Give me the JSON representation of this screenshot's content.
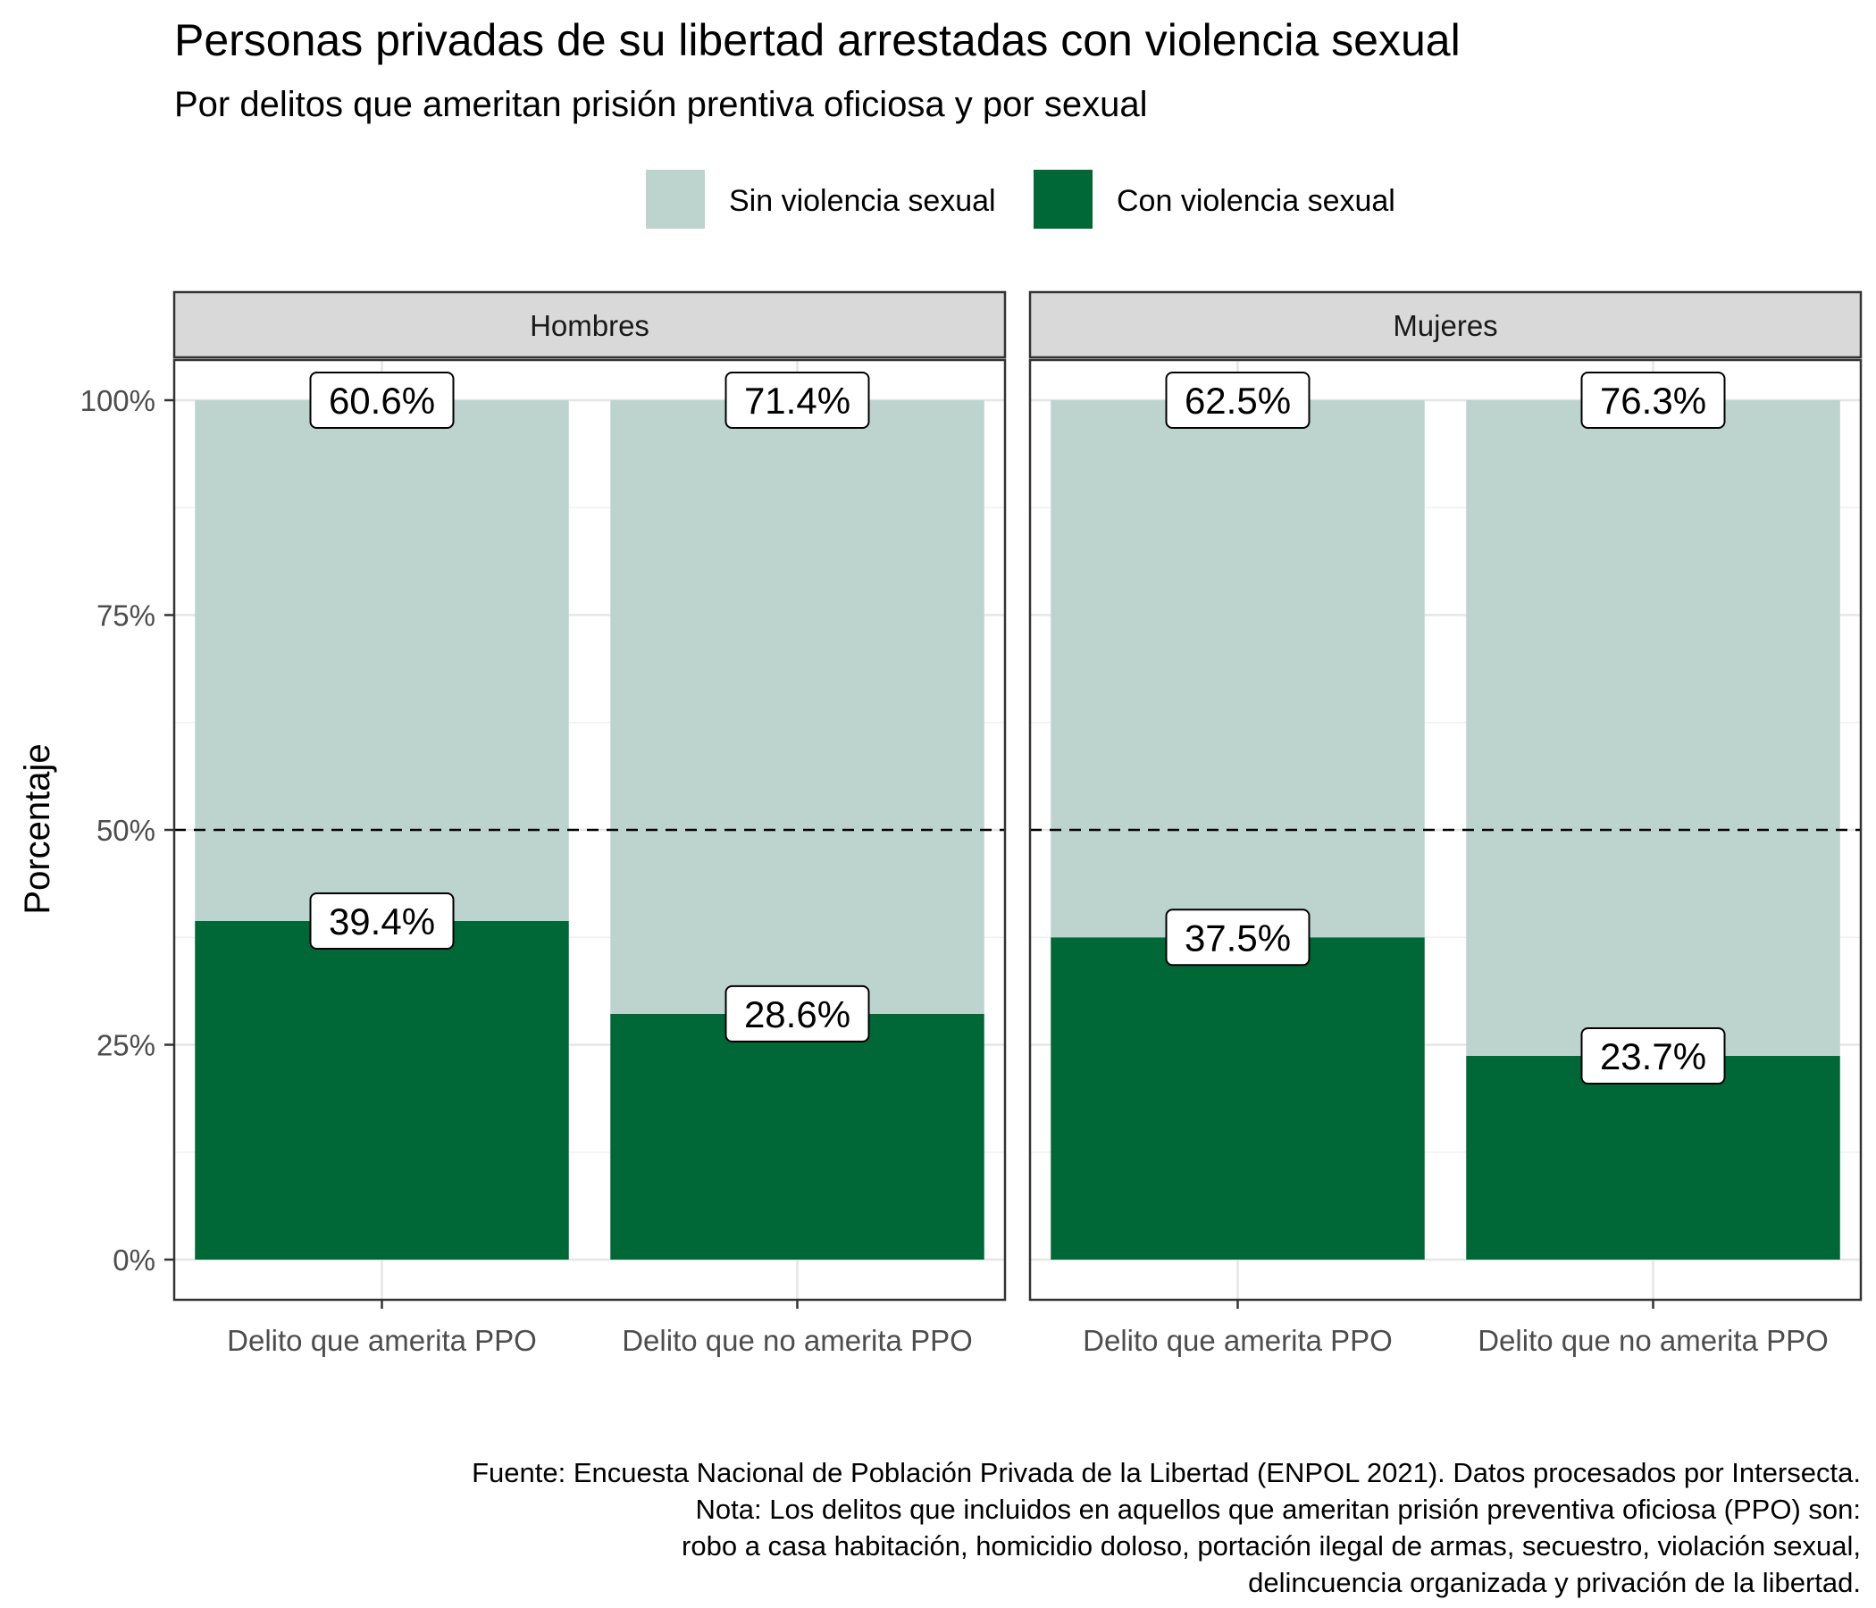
{
  "chart_data": {
    "type": "bar",
    "stacked": true,
    "title": "Personas privadas de su libertad arrestadas con violencia sexual",
    "subtitle": "Por delitos que ameritan prisión prentiva oficiosa y por sexual",
    "ylabel": "Porcentaje",
    "xlabel": "",
    "ylim": [
      0,
      100
    ],
    "yticks": [
      "0%",
      "25%",
      "50%",
      "75%",
      "100%"
    ],
    "ytick_values": [
      0,
      25,
      50,
      75,
      100
    ],
    "reference_line": {
      "y": 50,
      "style": "dashed"
    },
    "grid": true,
    "legend_position": "top",
    "categories": [
      "Delito que amerita PPO",
      "Delito que no amerita PPO"
    ],
    "series": [
      {
        "name": "Sin violencia sexual",
        "color": "#bcd4cd"
      },
      {
        "name": "Con violencia sexual",
        "color": "#006837"
      }
    ],
    "panels": [
      {
        "name": "Hombres",
        "values": {
          "Sin violencia sexual": [
            60.6,
            71.4
          ],
          "Con violencia sexual": [
            39.4,
            28.6
          ]
        },
        "labels": {
          "Sin violencia sexual": [
            "60.6%",
            "71.4%"
          ],
          "Con violencia sexual": [
            "39.4%",
            "28.6%"
          ]
        }
      },
      {
        "name": "Mujeres",
        "values": {
          "Sin violencia sexual": [
            62.5,
            76.3
          ],
          "Con violencia sexual": [
            37.5,
            23.7
          ]
        },
        "labels": {
          "Sin violencia sexual": [
            "62.5%",
            "76.3%"
          ],
          "Con violencia sexual": [
            "37.5%",
            "23.7%"
          ]
        }
      }
    ],
    "caption": [
      "Fuente: Encuesta Nacional de Población Privada de la Libertad (ENPOL 2021). Datos procesados por Intersecta.",
      "Nota: Los delitos que incluidos en aquellos que ameritan prisión preventiva oficiosa (PPO) son:",
      "robo a casa habitación, homicidio doloso, portación ilegal de armas, secuestro, violación sexual,",
      "delincuencia organizada y privación de la libertad."
    ]
  }
}
